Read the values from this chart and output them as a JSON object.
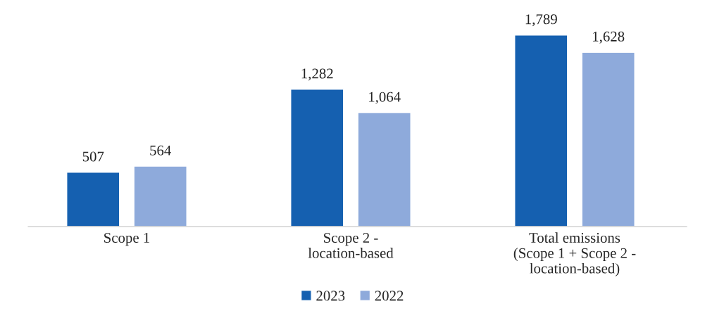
{
  "chart_data": {
    "type": "bar",
    "categories": [
      "Scope 1",
      "Scope 2 -\nlocation-based",
      "Total emissions\n(Scope 1 + Scope 2 -\nlocation-based)"
    ],
    "series": [
      {
        "name": "2023",
        "color": "#1560b0",
        "values": [
          507,
          1282,
          1789
        ],
        "value_labels": [
          "507",
          "1,282",
          "1,789"
        ]
      },
      {
        "name": "2022",
        "color": "#8eaadb",
        "values": [
          564,
          1064,
          1628
        ],
        "value_labels": [
          "564",
          "1,064",
          "1,628"
        ]
      }
    ],
    "legend": "bottom",
    "grid": false
  }
}
